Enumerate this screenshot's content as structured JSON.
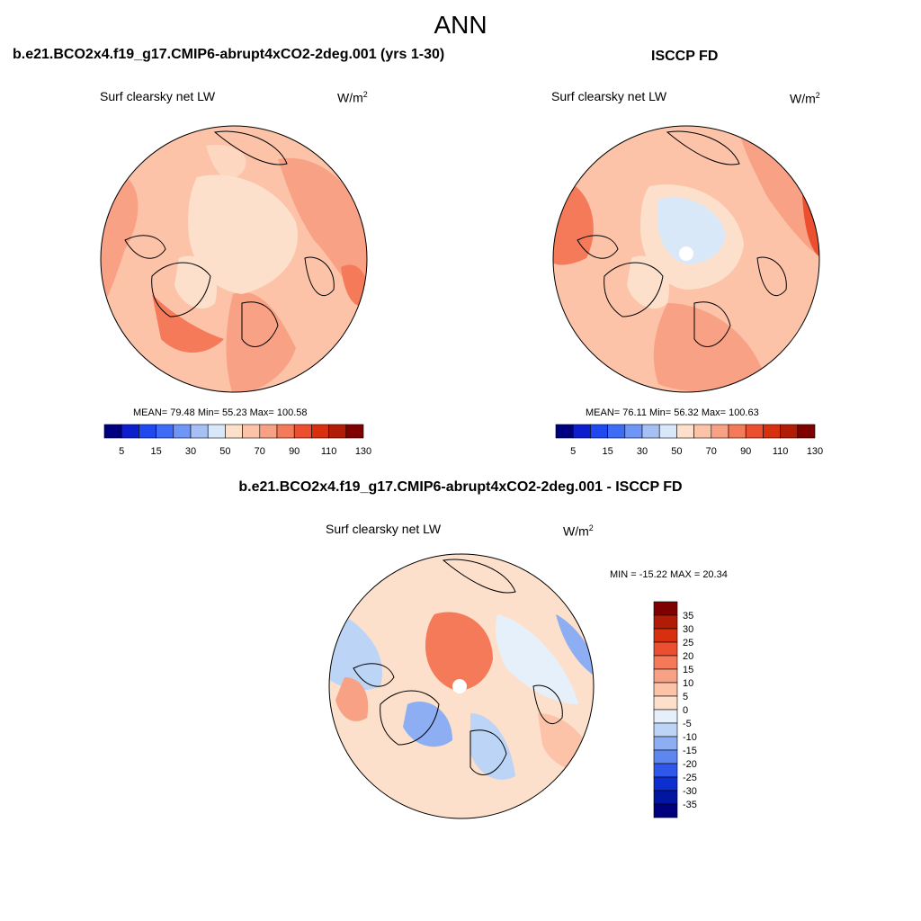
{
  "figure": {
    "title": "ANN",
    "case_name": "b.e21.BCO2x4.f19_g17.CMIP6-abrupt4xCO2-2deg.001 (yrs 1-30)",
    "obs_name": "ISCCP FD",
    "diff_title": "b.e21.BCO2x4.f19_g17.CMIP6-abrupt4xCO2-2deg.001 - ISCCP FD"
  },
  "panels": {
    "model": {
      "variable": "Surf clearsky net LW",
      "units_base": "W/m",
      "units_exp": "2",
      "stats": "MEAN=  79.48  Min=  55.23  Max= 100.58"
    },
    "obs": {
      "variable": "Surf clearsky net LW",
      "units_base": "W/m",
      "units_exp": "2",
      "stats": "MEAN=  76.11  Min=  56.32  Max= 100.63"
    },
    "diff": {
      "variable": "Surf clearsky net LW",
      "units_base": "W/m",
      "units_exp": "2",
      "stats": "MIN = -15.22 MAX =  20.34"
    }
  },
  "chart_data": [
    {
      "type": "colorbar",
      "name": "absolute field colorbar",
      "orientation": "horizontal",
      "tick_labels": [
        "5",
        "15",
        "30",
        "50",
        "70",
        "90",
        "110",
        "130"
      ],
      "colors": [
        "#00007f",
        "#0e1ecd",
        "#1f48ef",
        "#3f6cf7",
        "#6f95f7",
        "#a6c0f4",
        "#d8e8f8",
        "#fde0cb",
        "#fcc3a8",
        "#f9a184",
        "#f47a59",
        "#ec4e30",
        "#d6300f",
        "#b01c06",
        "#7f0000"
      ]
    },
    {
      "type": "colorbar",
      "name": "difference colorbar",
      "orientation": "vertical",
      "tick_labels": [
        "35",
        "30",
        "25",
        "20",
        "15",
        "10",
        "5",
        "0",
        "-5",
        "-10",
        "-15",
        "-20",
        "-25",
        "-30",
        "-35"
      ],
      "colors": [
        "#7f0000",
        "#b01c06",
        "#d6300f",
        "#ec4e30",
        "#f47a59",
        "#f9a184",
        "#fcc3a8",
        "#fde0cb",
        "#e6f0fb",
        "#bcd4f6",
        "#8daef2",
        "#5d86ef",
        "#2f58ea",
        "#0e2fd0",
        "#0015a0",
        "#00007f"
      ]
    }
  ]
}
